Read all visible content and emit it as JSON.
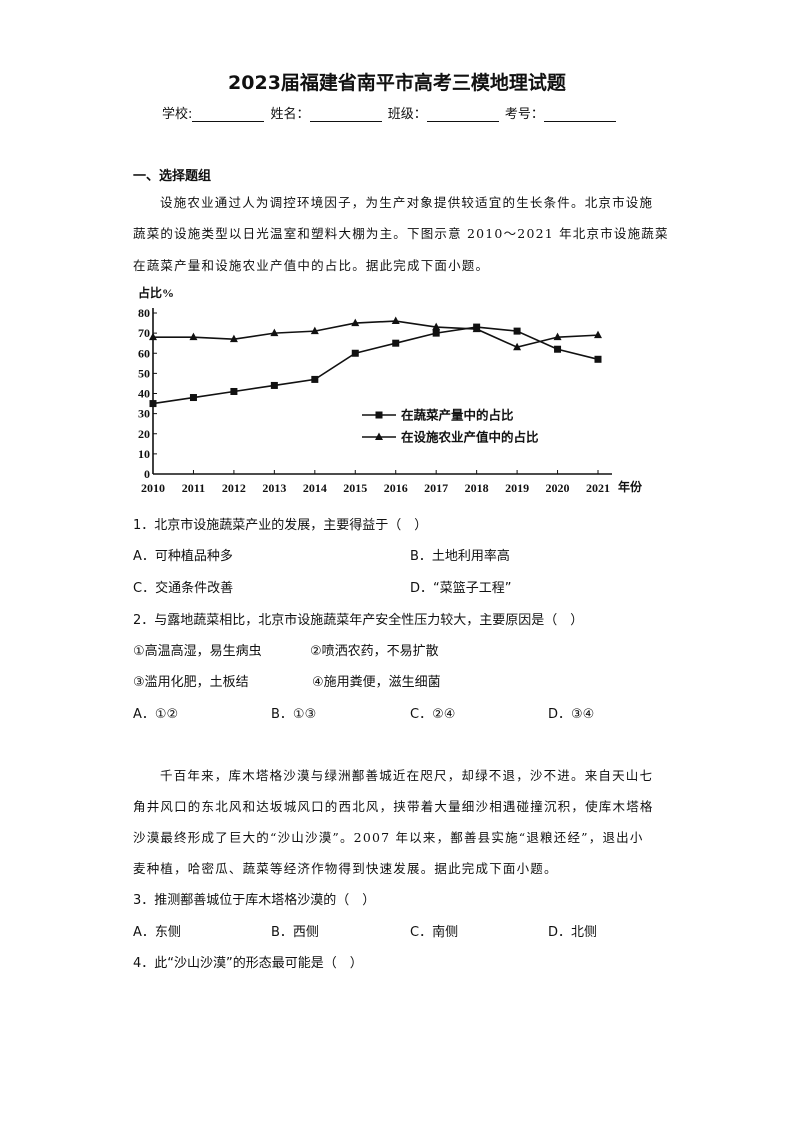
{
  "header": {
    "title": "2023届福建省南平市高考三模地理试题",
    "fields": [
      "学校:",
      "姓名：",
      "班级：",
      "考号："
    ]
  },
  "section_title": "一、选择题组",
  "passage1": [
    "设施农业通过人为调控环境因子，为生产对象提供较适宜的生长条件。北京市设施",
    "蔬菜的设施类型以日光温室和塑料大棚为主。下图示意 2010～2021 年北京市设施蔬菜",
    "在蔬菜产量和设施农业产值中的占比。据此完成下面小题。"
  ],
  "chart_data": {
    "type": "line",
    "title": "",
    "xlabel": "年份",
    "ylabel": "占比%",
    "categories": [
      "2010",
      "2011",
      "2012",
      "2013",
      "2014",
      "2015",
      "2016",
      "2017",
      "2018",
      "2019",
      "2020",
      "2021"
    ],
    "yticks": [
      "0",
      "10",
      "20",
      "30",
      "40",
      "50",
      "60",
      "70",
      "80"
    ],
    "ylim": [
      0,
      80
    ],
    "grid": false,
    "legend_position": "center-right",
    "series": [
      {
        "name": "在蔬菜产量中的占比",
        "marker": "square",
        "values": [
          35,
          38,
          41,
          44,
          47,
          60,
          65,
          70,
          73,
          71,
          62,
          57
        ]
      },
      {
        "name": "在设施农业产值中的占比",
        "marker": "triangle",
        "values": [
          68,
          68,
          67,
          70,
          71,
          75,
          76,
          73,
          72,
          63,
          68,
          69
        ]
      }
    ]
  },
  "questions": [
    {
      "stem": "1．北京市设施蔬菜产业的发展，主要得益于（　）",
      "options": [
        "A．可种植品种多",
        "B．土地利用率高",
        "C．交通条件改善",
        "D．“菜篮子工程”"
      ]
    },
    {
      "stem": "2．与露地蔬菜相比，北京市设施蔬菜年产安全性压力较大，主要原因是（　）",
      "items": [
        "①高温高湿，易生病虫",
        "②喷洒农药，不易扩散",
        "③滥用化肥，土板结",
        "④施用粪便，滋生细菌"
      ],
      "options": [
        "A．①②",
        "B．①③",
        "C．②④",
        "D．③④"
      ]
    }
  ],
  "passage2": [
    "千百年来，库木塔格沙漠与绿洲鄯善城近在咫尺，却绿不退，沙不进。来自天山七",
    "角井风口的东北风和达坂城风口的西北风，挟带着大量细沙相遇碰撞沉积，使库木塔格",
    "沙漠最终形成了巨大的“沙山沙漠”。2007 年以来，鄯善县实施“退粮还经”，退出小",
    "麦种植，哈密瓜、蔬菜等经济作物得到快速发展。据此完成下面小题。"
  ],
  "questions2": [
    {
      "stem": "3．推测鄯善城位于库木塔格沙漠的（　）",
      "options": [
        "A．东侧",
        "B．西侧",
        "C．南侧",
        "D．北侧"
      ]
    },
    {
      "stem": "4．此“沙山沙漠”的形态最可能是（　）"
    }
  ]
}
